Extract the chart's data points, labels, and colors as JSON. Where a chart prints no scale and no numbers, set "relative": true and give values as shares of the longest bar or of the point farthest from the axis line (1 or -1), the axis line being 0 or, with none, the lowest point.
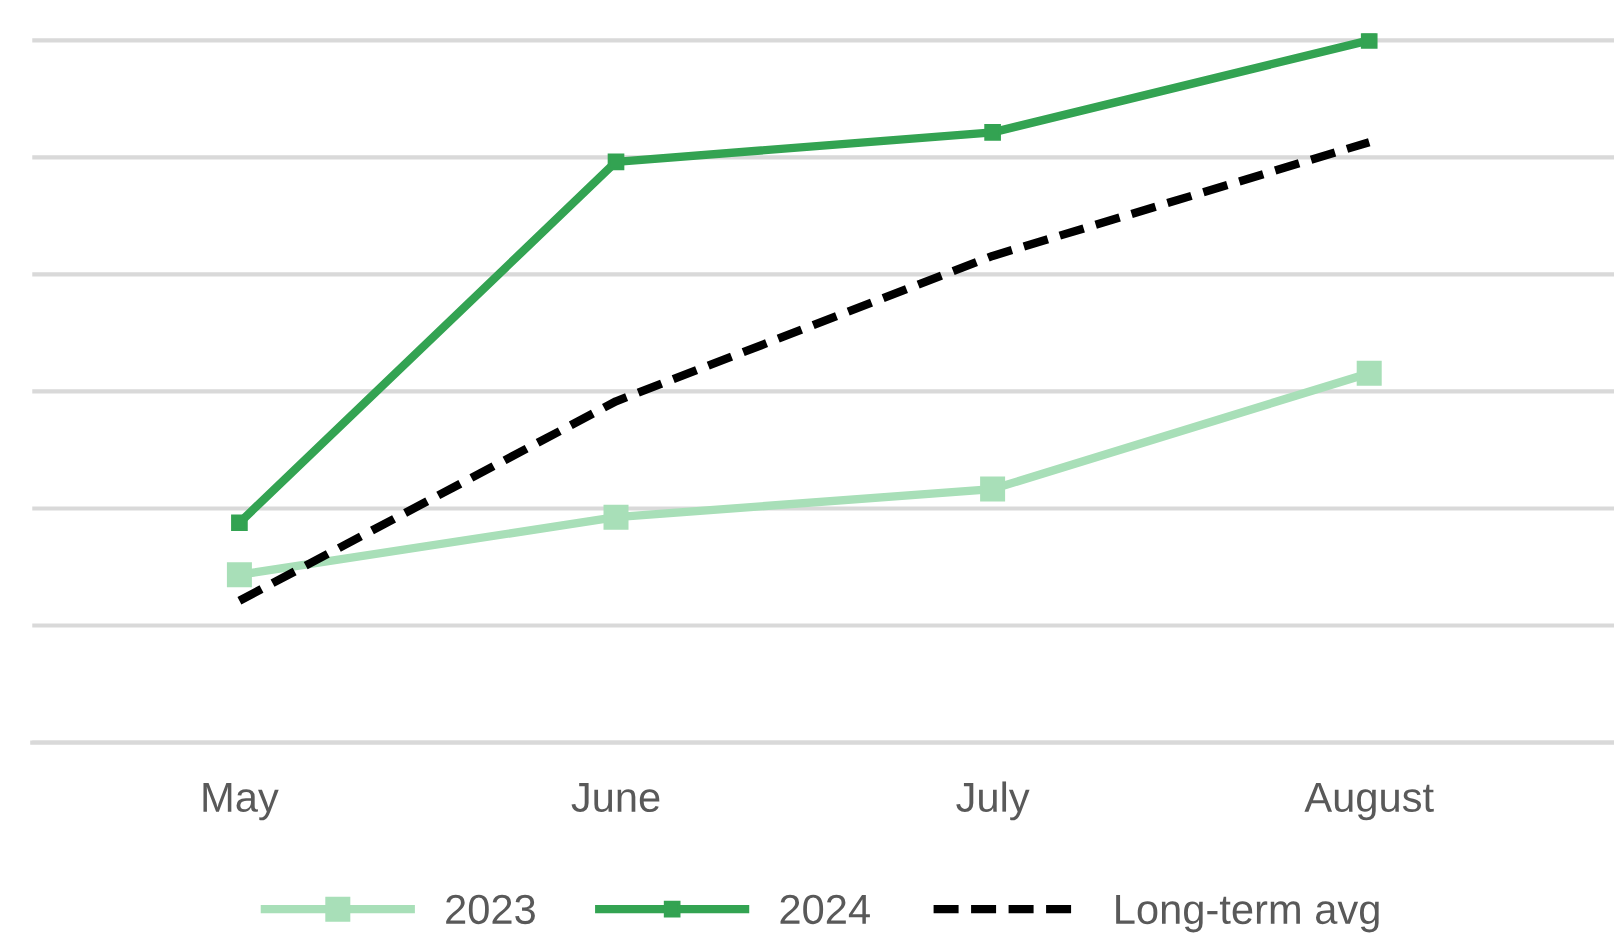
{
  "chart_data": {
    "type": "line",
    "relative": true,
    "categories": [
      "May",
      "June",
      "July",
      "August"
    ],
    "series": [
      {
        "name": "2023",
        "color": "#a8dfb8",
        "values": [
          0.239,
          0.321,
          0.361,
          0.526
        ],
        "marker": "square",
        "line_style": "solid"
      },
      {
        "name": "2024",
        "color": "#33a352",
        "values": [
          0.313,
          0.827,
          0.869,
          1
        ],
        "marker": "square",
        "line_style": "solid"
      },
      {
        "name": "Long-term avg",
        "color": "#000000",
        "values": [
          0.202,
          0.486,
          0.693,
          0.855
        ],
        "marker": "none",
        "line_style": "dashed"
      }
    ],
    "grid": "y",
    "legend": "bottom"
  }
}
